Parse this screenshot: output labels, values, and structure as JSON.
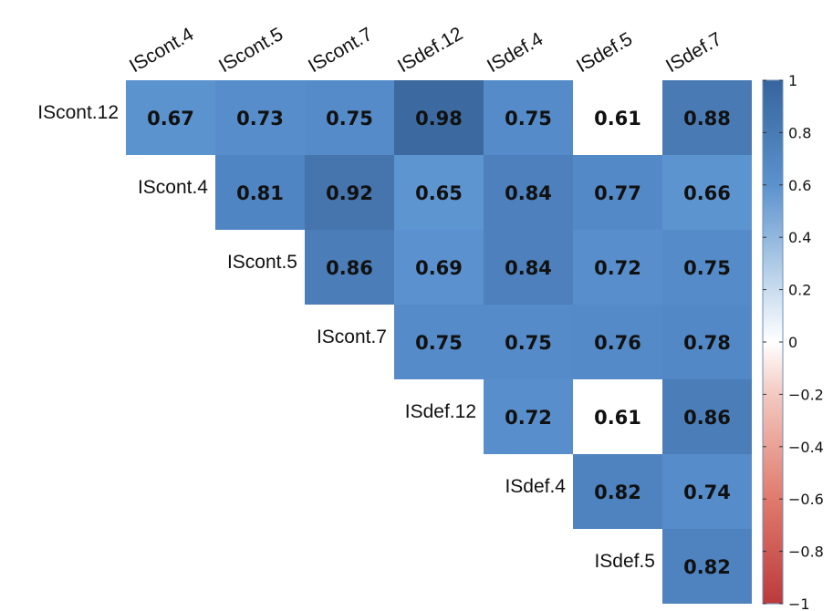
{
  "chart_data": {
    "type": "heatmap",
    "subtype": "upper-triangle correlation matrix",
    "columns": [
      "IScont.4",
      "IScont.5",
      "IScont.7",
      "ISdef.12",
      "ISdef.4",
      "ISdef.5",
      "ISdef.7"
    ],
    "rows": [
      "IScont.12",
      "IScont.4",
      "IScont.5",
      "IScont.7",
      "ISdef.12",
      "ISdef.4",
      "ISdef.5"
    ],
    "values": [
      [
        0.67,
        0.73,
        0.75,
        0.98,
        0.75,
        0.61,
        0.88
      ],
      [
        null,
        0.81,
        0.92,
        0.65,
        0.84,
        0.77,
        0.66
      ],
      [
        null,
        null,
        0.86,
        0.69,
        0.84,
        0.72,
        0.75
      ],
      [
        null,
        null,
        null,
        0.75,
        0.75,
        0.76,
        0.78
      ],
      [
        null,
        null,
        null,
        null,
        0.72,
        0.61,
        0.86
      ],
      [
        null,
        null,
        null,
        null,
        null,
        0.82,
        0.74
      ],
      [
        null,
        null,
        null,
        null,
        null,
        null,
        0.82
      ]
    ],
    "color_scale": {
      "range": [
        -1,
        1
      ],
      "ticks": [
        "1",
        "0.8",
        "0.6",
        "0.4",
        "0.2",
        "0",
        "−0.2",
        "−0.4",
        "−0.6",
        "−0.8",
        "−1"
      ],
      "colors": {
        "high": "#3a6da6",
        "mid": "#ffffff",
        "low": "#c0393b"
      }
    },
    "legend": "right",
    "grid": false
  }
}
